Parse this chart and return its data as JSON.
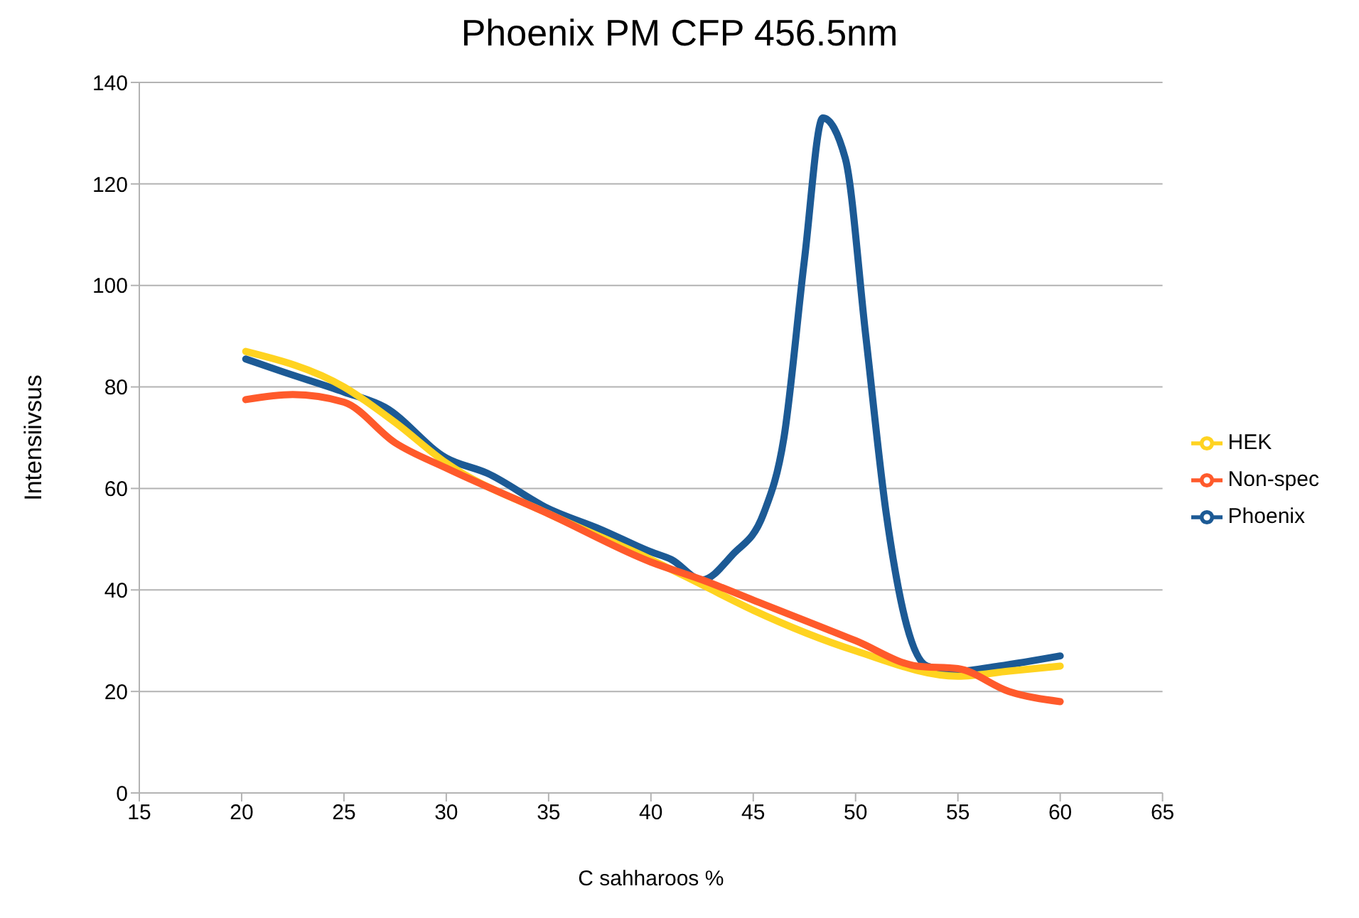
{
  "chart_data": {
    "type": "line",
    "title": "Phoenix PM CFP 456.5nm",
    "xlabel": "C sahharoos %",
    "ylabel": "Intensiivsus",
    "xlim": [
      15,
      65
    ],
    "xticks": [
      15,
      20,
      25,
      30,
      35,
      40,
      45,
      50,
      55,
      60,
      65
    ],
    "ylim": [
      0,
      140
    ],
    "yticks": [
      0,
      20,
      40,
      60,
      80,
      100,
      120,
      140
    ],
    "grid": "y",
    "legend": "right",
    "marker": "none",
    "line_style": "solid",
    "series": [
      {
        "name": "Phoenix",
        "color": "#1c5a95",
        "x": [
          20.2,
          22,
          25,
          27,
          30,
          32,
          35,
          37.5,
          40,
          41,
          42.5,
          44,
          45.5,
          46.5,
          47.5,
          48.4,
          49.5,
          50.5,
          51.5,
          52.5,
          53.5,
          55,
          57,
          60
        ],
        "values": [
          85.5,
          83,
          79,
          76,
          66,
          63,
          56,
          52,
          47.5,
          46,
          42,
          47,
          55,
          70,
          105,
          133,
          125,
          90,
          55,
          33,
          25,
          24,
          25,
          27
        ]
      },
      {
        "name": "HEK",
        "color": "#ffd320",
        "x": [
          20.2,
          25,
          27.5,
          30,
          35,
          40,
          42.5,
          45,
          50,
          55,
          57.5,
          60
        ],
        "values": [
          87,
          80,
          73,
          65,
          55,
          46,
          41,
          36,
          28,
          23,
          24,
          25
        ]
      },
      {
        "name": "Non-spec",
        "color": "#ff5a2b",
        "x": [
          20.2,
          22.5,
          25,
          27.5,
          30,
          35,
          40,
          42.5,
          45,
          50,
          53,
          55,
          57.5,
          60
        ],
        "values": [
          77.5,
          78.5,
          77,
          69,
          64,
          55,
          45.5,
          42,
          38,
          30,
          25,
          24.5,
          20,
          18
        ]
      }
    ]
  }
}
